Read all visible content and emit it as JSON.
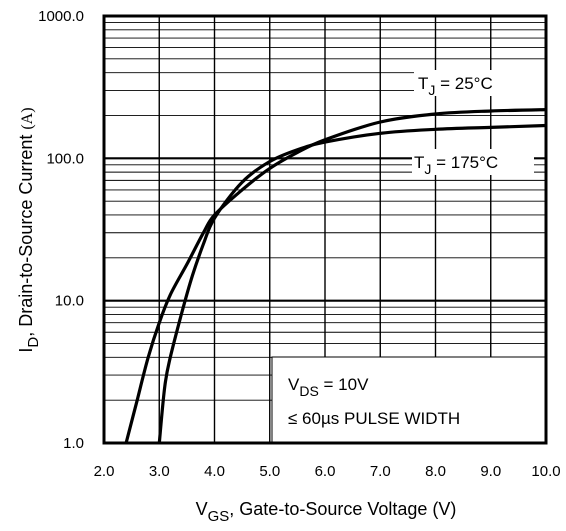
{
  "chart_data": {
    "type": "line",
    "xscale": "linear",
    "yscale": "log",
    "xlim": [
      2.0,
      10.0
    ],
    "ylim": [
      1.0,
      1000.0
    ],
    "grid": true,
    "x_ticks": [
      "2.0",
      "3.0",
      "4.0",
      "5.0",
      "6.0",
      "7.0",
      "8.0",
      "9.0",
      "10.0"
    ],
    "y_ticks": [
      "1.0",
      "10.0",
      "100.0",
      "1000.0"
    ],
    "xlabel": {
      "main": "V",
      "sub": "GS",
      "rest": ", Gate-to-Source Voltage (V)"
    },
    "ylabel": {
      "main": "I",
      "sub": "D",
      "rest": ", Drain-to-Source Current ",
      "unit": "(A)"
    },
    "series": [
      {
        "name": {
          "main": "T",
          "sub": "J",
          "rest": " = 25°C"
        },
        "x": [
          2.4,
          2.6,
          2.8,
          3.0,
          3.2,
          3.5,
          3.8,
          4.0,
          4.5,
          5.0,
          5.5,
          6.0,
          7.0,
          8.0,
          9.0,
          10.0
        ],
        "y": [
          1.0,
          2.0,
          4.0,
          7.0,
          11.0,
          18.0,
          30.0,
          40.0,
          60.0,
          85.0,
          110.0,
          135.0,
          180.0,
          205.0,
          215.0,
          220.0
        ]
      },
      {
        "name": {
          "main": "T",
          "sub": "J",
          "rest": " = 175°C"
        },
        "x": [
          3.0,
          3.1,
          3.2,
          3.4,
          3.6,
          3.8,
          4.0,
          4.5,
          5.0,
          5.5,
          6.0,
          7.0,
          8.0,
          9.0,
          10.0
        ],
        "y": [
          1.0,
          2.5,
          4.0,
          8.0,
          15.0,
          25.0,
          38.0,
          68.0,
          95.0,
          115.0,
          130.0,
          150.0,
          160.0,
          165.0,
          170.0
        ]
      }
    ],
    "annotation": {
      "line1": {
        "main": "V",
        "sub": "DS",
        "rest": " = 10V"
      },
      "line2": "≤ 60µs PULSE WIDTH"
    }
  }
}
